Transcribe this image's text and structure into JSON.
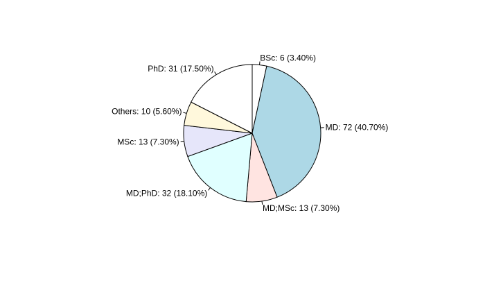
{
  "chart_data": {
    "type": "pie",
    "title": "",
    "slices": [
      {
        "label": "BSc: 6 (3.40%)",
        "value": 6,
        "color": "#ffffff"
      },
      {
        "label": "MD: 72 (40.70%)",
        "value": 72,
        "color": "#add8e6"
      },
      {
        "label": "MD;MSc: 13 (7.30%)",
        "value": 13,
        "color": "#ffe4e1"
      },
      {
        "label": "MD;PhD: 32 (18.10%)",
        "value": 32,
        "color": "#e0ffff"
      },
      {
        "label": "MSc: 13 (7.30%)",
        "value": 13,
        "color": "#e6e6fa"
      },
      {
        "label": "Others: 10 (5.60%)",
        "value": 10,
        "color": "#fff8dc"
      },
      {
        "label": "PhD: 31 (17.50%)",
        "value": 31,
        "color": "#ffffff"
      }
    ],
    "start_angle_deg": 90,
    "direction": "clockwise",
    "stroke_color": "#000000"
  }
}
